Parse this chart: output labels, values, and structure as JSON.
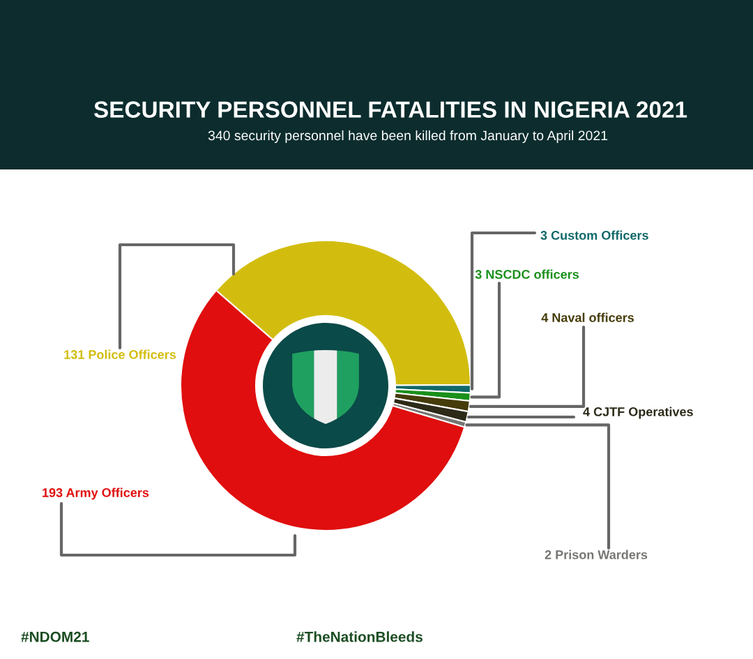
{
  "chart_data": {
    "type": "donut",
    "title": "SECURITY PERSONNEL FATALITIES IN NIGERIA 2021",
    "subtitle": "340 security personnel have been killed from January to April 2021",
    "categories": [
      "131 Police Officers",
      "3 Custom Officers",
      "3 NSCDC officers",
      "4 Naval officers",
      "4 CJTF Operatives",
      "2 Prison Warders",
      "193 Army Officers"
    ],
    "values": [
      131,
      3,
      3,
      4,
      4,
      2,
      193
    ],
    "colors": [
      "#d2bd0f",
      "#106868",
      "#1a901c",
      "#463c0a",
      "#2d2a18",
      "#767672",
      "#e00e0e"
    ],
    "annotations": [
      "#NDOM21",
      "#TheNationBleeds"
    ]
  }
}
